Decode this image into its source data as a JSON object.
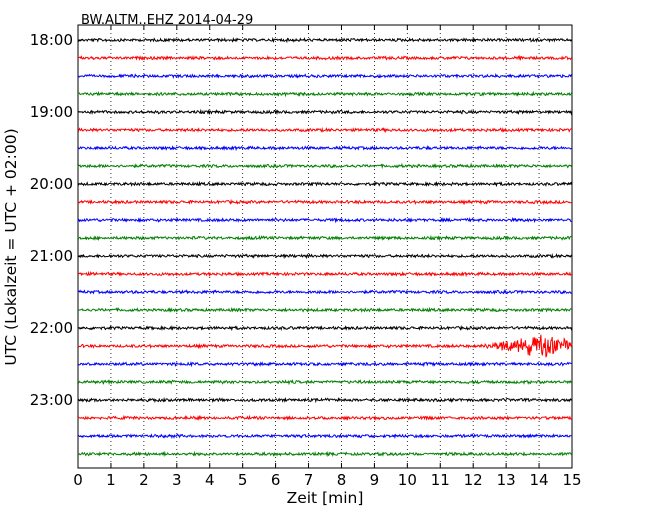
{
  "chart_data": {
    "type": "line",
    "title": "BW.ALTM..EHZ 2014-04-29",
    "xlabel": "Zeit  [min]",
    "ylabel": "UTC (Lokalzeit = UTC + 02:00)",
    "xlim": [
      0,
      15
    ],
    "x_ticks": [
      "0",
      "1",
      "2",
      "3",
      "4",
      "5",
      "6",
      "7",
      "8",
      "9",
      "10",
      "11",
      "12",
      "13",
      "14",
      "15"
    ],
    "y_tick_labels": [
      "18:00",
      "19:00",
      "20:00",
      "21:00",
      "22:00",
      "23:00"
    ],
    "grid": "vertical dotted",
    "trace_interval_min": 15,
    "series_colors": [
      "#000000",
      "#ff0000",
      "#0000ff",
      "#008000"
    ],
    "traces": [
      {
        "start": "18:00",
        "color": "#000000",
        "event": null
      },
      {
        "start": "18:15",
        "color": "#ff0000",
        "event": null
      },
      {
        "start": "18:30",
        "color": "#0000ff",
        "event": null
      },
      {
        "start": "18:45",
        "color": "#008000",
        "event": null
      },
      {
        "start": "19:00",
        "color": "#000000",
        "event": null
      },
      {
        "start": "19:15",
        "color": "#ff0000",
        "event": null
      },
      {
        "start": "19:30",
        "color": "#0000ff",
        "event": null
      },
      {
        "start": "19:45",
        "color": "#008000",
        "event": null
      },
      {
        "start": "20:00",
        "color": "#000000",
        "event": null
      },
      {
        "start": "20:15",
        "color": "#ff0000",
        "event": null
      },
      {
        "start": "20:30",
        "color": "#0000ff",
        "event": null
      },
      {
        "start": "20:45",
        "color": "#008000",
        "event": null
      },
      {
        "start": "21:00",
        "color": "#000000",
        "event": null
      },
      {
        "start": "21:15",
        "color": "#ff0000",
        "event": null
      },
      {
        "start": "21:30",
        "color": "#0000ff",
        "event": null
      },
      {
        "start": "21:45",
        "color": "#008000",
        "event": null
      },
      {
        "start": "22:00",
        "color": "#000000",
        "event": null
      },
      {
        "start": "22:15",
        "color": "#ff0000",
        "event": {
          "start_min": 12.2,
          "end_min": 15,
          "peak_min": 14.1
        }
      },
      {
        "start": "22:30",
        "color": "#0000ff",
        "event": null
      },
      {
        "start": "22:45",
        "color": "#008000",
        "event": null
      },
      {
        "start": "23:00",
        "color": "#000000",
        "event": null
      },
      {
        "start": "23:15",
        "color": "#ff0000",
        "event": null
      },
      {
        "start": "23:30",
        "color": "#0000ff",
        "event": null
      },
      {
        "start": "23:45",
        "color": "#008000",
        "event": null
      }
    ]
  }
}
